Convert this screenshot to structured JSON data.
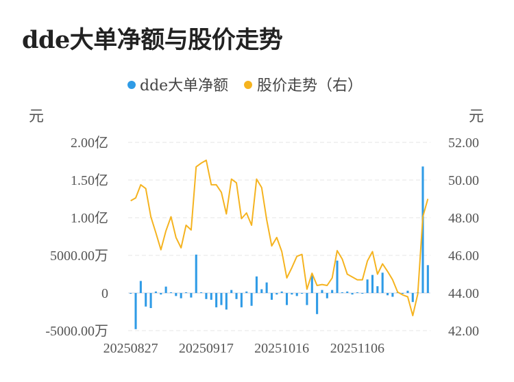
{
  "page_title": "dde大单净额与股价走势",
  "chart_data": {
    "type": "bar+line",
    "title": "dde大单净额与股价走势",
    "left_unit": "元",
    "right_unit": "元",
    "legend_position": "top-center",
    "left_axis": {
      "range": [
        -50000000,
        200000000
      ],
      "ticks": [
        {
          "value": 200000000,
          "label": "2.00亿"
        },
        {
          "value": 150000000,
          "label": "1.50亿"
        },
        {
          "value": 100000000,
          "label": "1.00亿"
        },
        {
          "value": 50000000,
          "label": "5000.00万"
        },
        {
          "value": 0,
          "label": "0"
        },
        {
          "value": -50000000,
          "label": "-5000.00万"
        }
      ]
    },
    "right_axis": {
      "range": [
        42,
        52
      ],
      "ticks": [
        {
          "value": 52,
          "label": "52.00"
        },
        {
          "value": 50,
          "label": "50.00"
        },
        {
          "value": 48,
          "label": "48.00"
        },
        {
          "value": 46,
          "label": "46.00"
        },
        {
          "value": 44,
          "label": "44.00"
        },
        {
          "value": 42,
          "label": "42.00"
        }
      ]
    },
    "grid": true,
    "x_tick_labels": [
      {
        "index": 0,
        "label": "20250827"
      },
      {
        "index": 15,
        "label": "20250917"
      },
      {
        "index": 30,
        "label": "20251016"
      },
      {
        "index": 45,
        "label": "20251106"
      }
    ],
    "series": [
      {
        "name": "dde大单净额",
        "type": "bar",
        "axis": "left",
        "color": "#2f9be6",
        "values": [
          -1000000,
          -48000000,
          16000000,
          -18000000,
          -20000000,
          2000000,
          -2000000,
          8500000,
          1000000,
          -4000000,
          -7000000,
          1000000,
          -6000000,
          51000000,
          1000000,
          -8000000,
          -9000000,
          -19000000,
          -16000000,
          -22000000,
          4000000,
          -8000000,
          -19000000,
          2000000,
          -17000000,
          22000000,
          5000000,
          14000000,
          -9000000,
          -2000000,
          2000000,
          -16000000,
          -2000000,
          -4000000,
          -1000000,
          -16000000,
          25000000,
          -28000000,
          4000000,
          -7000000,
          4000000,
          43000000,
          1000000,
          2000000,
          -2000000,
          1000000,
          -1000000,
          18000000,
          24000000,
          9000000,
          27000000,
          -3000000,
          -5000000,
          1000000,
          -1000000,
          3000000,
          -12000000,
          1000000,
          168000000,
          37000000
        ]
      },
      {
        "name": "股价走势（右）",
        "type": "line",
        "axis": "right",
        "color": "#f5b31f",
        "values": [
          48.9,
          49.05,
          49.75,
          49.55,
          48.05,
          47.2,
          46.3,
          47.3,
          48.05,
          46.95,
          46.4,
          47.6,
          47.35,
          50.7,
          50.9,
          51.05,
          49.75,
          49.75,
          49.35,
          48.2,
          50.05,
          49.85,
          47.95,
          48.25,
          47.6,
          50.05,
          49.6,
          47.9,
          46.5,
          46.95,
          46.2,
          44.8,
          45.35,
          45.95,
          46.05,
          44.2,
          45.05,
          44.4,
          44.45,
          44.4,
          44.8,
          46.25,
          45.8,
          45.0,
          44.85,
          44.7,
          44.7,
          45.7,
          46.2,
          45.0,
          45.55,
          45.15,
          44.7,
          44.05,
          43.9,
          43.8,
          42.8,
          43.95,
          48.05,
          49.0
        ]
      }
    ]
  }
}
